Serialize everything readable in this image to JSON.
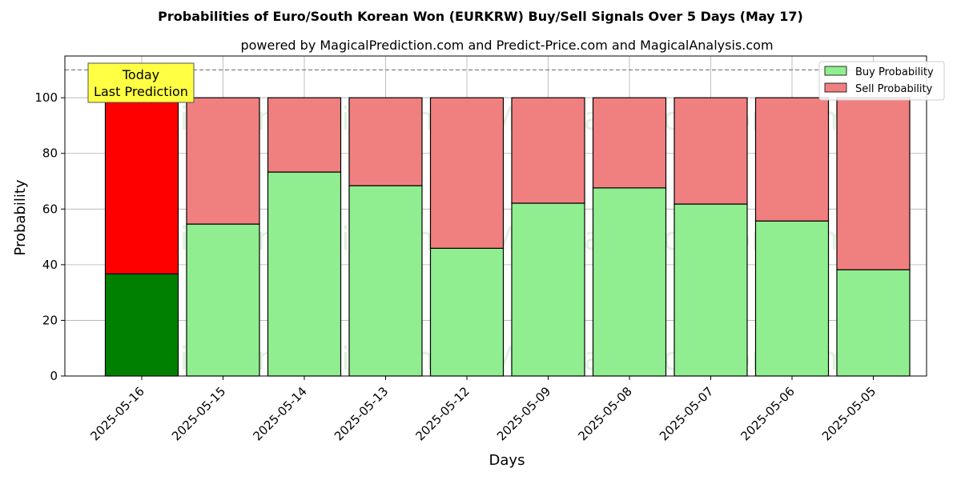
{
  "chart_data": {
    "type": "bar",
    "stacked": true,
    "title": "Probabilities of Euro/South Korean Won (EURKRW) Buy/Sell Signals Over 5 Days (May 17)",
    "subtitle": "powered by MagicalPrediction.com and Predict-Price.com and MagicalAnalysis.com",
    "xlabel": "Days",
    "ylabel": "Probability",
    "ylim": [
      0,
      115
    ],
    "yticks": [
      0,
      20,
      40,
      60,
      80,
      100
    ],
    "reference_line": 110,
    "grid": true,
    "legend_position": "top-right",
    "categories": [
      "2025-05-16",
      "2025-05-15",
      "2025-05-14",
      "2025-05-13",
      "2025-05-12",
      "2025-05-09",
      "2025-05-08",
      "2025-05-07",
      "2025-05-06",
      "2025-05-05"
    ],
    "series": [
      {
        "name": "Buy Probability",
        "color": "#90ee90",
        "highlight_color": "#008000",
        "values": [
          36.7,
          54.6,
          73.3,
          68.4,
          45.9,
          62.1,
          67.6,
          61.8,
          55.7,
          38.2
        ]
      },
      {
        "name": "Sell Probability",
        "color": "#f08080",
        "highlight_color": "#ff0000",
        "values": [
          63.3,
          45.4,
          26.7,
          31.6,
          54.1,
          37.9,
          32.4,
          38.2,
          44.3,
          61.8
        ]
      }
    ],
    "annotation": {
      "line1": "Today",
      "line2": "Last Prediction",
      "color": "#ffff44"
    },
    "watermarks": [
      "MagicalAnalysis.com",
      "MagicalPrediction.com"
    ]
  }
}
